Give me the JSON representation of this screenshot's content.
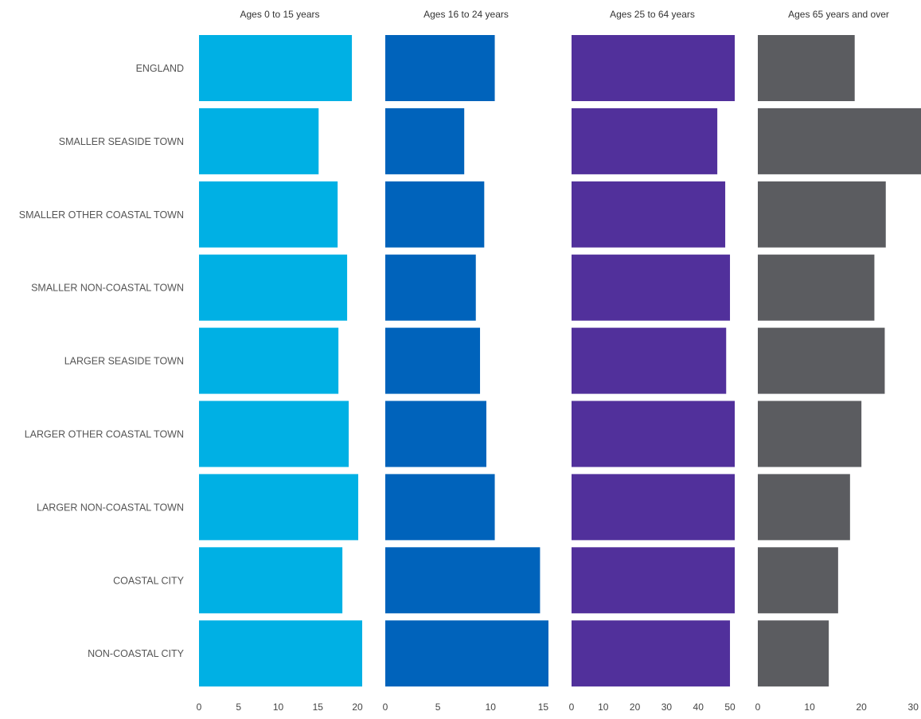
{
  "chart_data": {
    "type": "bar",
    "orientation": "horizontal",
    "layout": "small-multiples",
    "categories": [
      "ENGLAND",
      "SMALLER SEASIDE TOWN",
      "SMALLER OTHER COASTAL TOWN",
      "SMALLER NON-COASTAL TOWN",
      "LARGER SEASIDE TOWN",
      "LARGER OTHER COASTAL TOWN",
      "LARGER NON-COASTAL TOWN",
      "COASTAL CITY",
      "NON-COASTAL CITY"
    ],
    "panels": [
      {
        "title": "Ages 0 to 15 years",
        "color": "#00B0E4",
        "xlim": [
          0,
          20.6
        ],
        "ticks": [
          0,
          5,
          10,
          15,
          20
        ],
        "values": [
          19.3,
          15.1,
          17.5,
          18.7,
          17.6,
          18.9,
          20.1,
          18.1,
          20.6
        ]
      },
      {
        "title": "Ages 16 to 24 years",
        "color": "#0063BB",
        "xlim": [
          0,
          15.5
        ],
        "ticks": [
          0,
          5,
          10,
          15
        ],
        "values": [
          10.4,
          7.5,
          9.4,
          8.6,
          9.0,
          9.6,
          10.4,
          14.7,
          15.5
        ]
      },
      {
        "title": "Ages 25 to 64 years",
        "color": "#51309B",
        "xlim": [
          0,
          51.5
        ],
        "ticks": [
          0,
          10,
          20,
          30,
          40,
          50
        ],
        "values": [
          51.5,
          46.0,
          48.5,
          50.0,
          48.8,
          51.5,
          51.5,
          51.5,
          50.0
        ]
      },
      {
        "title": "Ages 65 years and over",
        "color": "#5B5C60",
        "xlim": [
          0,
          31.5
        ],
        "ticks": [
          0,
          10,
          20,
          30
        ],
        "values": [
          18.7,
          31.5,
          24.7,
          22.5,
          24.5,
          20.0,
          17.8,
          15.5,
          13.7
        ]
      }
    ]
  }
}
